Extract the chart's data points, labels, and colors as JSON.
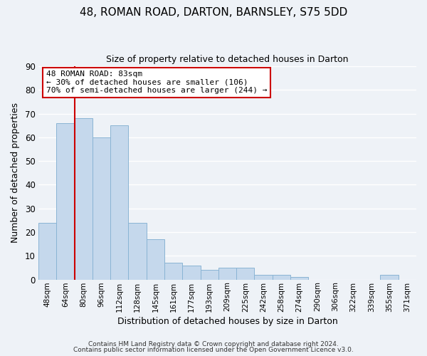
{
  "title": "48, ROMAN ROAD, DARTON, BARNSLEY, S75 5DD",
  "subtitle": "Size of property relative to detached houses in Darton",
  "xlabel": "Distribution of detached houses by size in Darton",
  "ylabel": "Number of detached properties",
  "categories": [
    "48sqm",
    "64sqm",
    "80sqm",
    "96sqm",
    "112sqm",
    "128sqm",
    "145sqm",
    "161sqm",
    "177sqm",
    "193sqm",
    "209sqm",
    "225sqm",
    "242sqm",
    "258sqm",
    "274sqm",
    "290sqm",
    "306sqm",
    "322sqm",
    "339sqm",
    "355sqm",
    "371sqm"
  ],
  "values": [
    24,
    66,
    68,
    60,
    65,
    24,
    17,
    7,
    6,
    4,
    5,
    5,
    2,
    2,
    1,
    0,
    0,
    0,
    0,
    2,
    0
  ],
  "bar_color": "#c5d8ec",
  "bar_edge_color": "#8ab4d4",
  "vline_index": 2,
  "vline_color": "#cc0000",
  "ylim": [
    0,
    90
  ],
  "yticks": [
    0,
    10,
    20,
    30,
    40,
    50,
    60,
    70,
    80,
    90
  ],
  "annotation_title": "48 ROMAN ROAD: 83sqm",
  "annotation_line1": "← 30% of detached houses are smaller (106)",
  "annotation_line2": "70% of semi-detached houses are larger (244) →",
  "annotation_box_color": "#ffffff",
  "annotation_box_edge": "#cc0000",
  "background_color": "#eef2f7",
  "grid_color": "#ffffff",
  "title_fontsize": 11,
  "subtitle_fontsize": 9,
  "footer1": "Contains HM Land Registry data © Crown copyright and database right 2024.",
  "footer2": "Contains public sector information licensed under the Open Government Licence v3.0."
}
